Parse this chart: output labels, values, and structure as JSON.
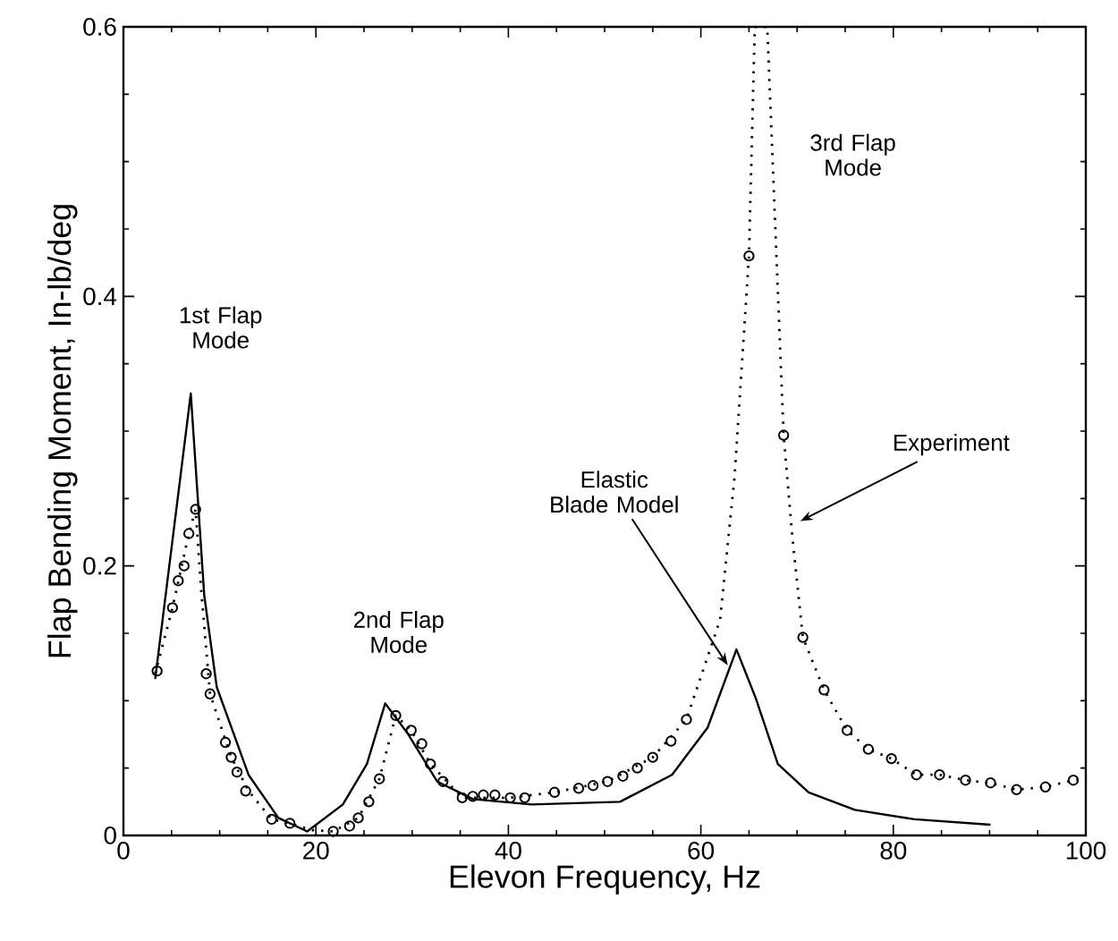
{
  "chart_data": {
    "type": "line",
    "xlabel": "Elevon Frequency, Hz",
    "ylabel": "Flap Bending Moment, In-lb/deg",
    "xlim": [
      0,
      100
    ],
    "ylim": [
      0,
      0.6
    ],
    "xticks": [
      0,
      20,
      40,
      60,
      80,
      100
    ],
    "yticks": [
      0,
      0.2,
      0.4,
      0.6
    ],
    "series": [
      {
        "line_style": "solid",
        "marker": "none",
        "color": "#000000",
        "x": [
          3.3,
          7.0,
          8.4,
          9.7,
          13,
          16.1,
          19.1,
          22.8,
          25.3,
          27.2,
          29.5,
          32.6,
          36.3,
          42.4,
          51.6,
          57,
          60.7,
          63.7,
          65.7,
          68,
          71.2,
          76,
          82.2,
          90.1
        ],
        "values": [
          0.116,
          0.328,
          0.178,
          0.11,
          0.045,
          0.013,
          0.003,
          0.023,
          0.053,
          0.098,
          0.076,
          0.04,
          0.027,
          0.023,
          0.025,
          0.045,
          0.08,
          0.138,
          0.102,
          0.053,
          0.032,
          0.019,
          0.012,
          0.008
        ]
      },
      {
        "line_style": "dotted",
        "marker": "none",
        "color": "#000000",
        "x": [
          3.3,
          5.1,
          6.8,
          7.5,
          8.1,
          9.0,
          11.2,
          13,
          15.4,
          17.3,
          19.5,
          21.8,
          24.4,
          26.6,
          28.3,
          29.9,
          31.9,
          35.2,
          40.2,
          44.8,
          50.3,
          55,
          58.5,
          62,
          63.5,
          65,
          65.6,
          66.9,
          68.6,
          69.5,
          70.6,
          72.8,
          75.2,
          77.4,
          79.8,
          82.4,
          84.8,
          87.5,
          90.1,
          92.8,
          95.8,
          98.7,
          100
        ],
        "values": [
          0.12,
          0.169,
          0.224,
          0.242,
          0.18,
          0.105,
          0.058,
          0.033,
          0.012,
          0.009,
          0.004,
          0.003,
          0.013,
          0.042,
          0.089,
          0.078,
          0.053,
          0.028,
          0.028,
          0.032,
          0.04,
          0.058,
          0.086,
          0.16,
          0.266,
          0.43,
          0.6,
          0.6,
          0.297,
          0.222,
          0.147,
          0.108,
          0.078,
          0.064,
          0.057,
          0.045,
          0.045,
          0.041,
          0.039,
          0.034,
          0.036,
          0.041,
          0.042
        ]
      },
      {
        "type": "scatter",
        "marker": "circle",
        "color": "#000000",
        "x": [
          3.5,
          5.1,
          5.7,
          6.3,
          6.8,
          7.5,
          8.6,
          9.0,
          10.6,
          11.2,
          11.8,
          12.7,
          15.4,
          17.3,
          21.8,
          23.5,
          24.4,
          25.5,
          26.6,
          28.3,
          29.9,
          31.0,
          31.9,
          33.2,
          35.2,
          36.3,
          37.4,
          38.6,
          40.2,
          41.7,
          44.8,
          47.3,
          48.8,
          50.3,
          51.9,
          53.4,
          55.0,
          56.9,
          58.5,
          65.0,
          68.6,
          70.6,
          72.8,
          75.2,
          77.4,
          79.8,
          82.4,
          84.8,
          87.5,
          90.1,
          92.8,
          95.8,
          98.7
        ],
        "values": [
          0.122,
          0.169,
          0.189,
          0.2,
          0.224,
          0.242,
          0.12,
          0.105,
          0.069,
          0.058,
          0.047,
          0.033,
          0.012,
          0.009,
          0.003,
          0.007,
          0.013,
          0.025,
          0.042,
          0.089,
          0.078,
          0.068,
          0.053,
          0.04,
          0.028,
          0.029,
          0.03,
          0.03,
          0.028,
          0.028,
          0.032,
          0.035,
          0.037,
          0.04,
          0.044,
          0.05,
          0.058,
          0.07,
          0.086,
          0.43,
          0.297,
          0.147,
          0.108,
          0.078,
          0.064,
          0.057,
          0.045,
          0.045,
          0.041,
          0.039,
          0.034,
          0.036,
          0.041
        ]
      }
    ],
    "annotations": [
      "1st Flap Mode",
      "2nd Flap Mode",
      "3rd Flap Mode",
      {
        "text": "Elastic Blade Model",
        "x": 63.0,
        "y": 0.124
      },
      {
        "text": "Experiment",
        "x": 70.0,
        "y": 0.232
      }
    ],
    "grid": false,
    "legend": false
  }
}
